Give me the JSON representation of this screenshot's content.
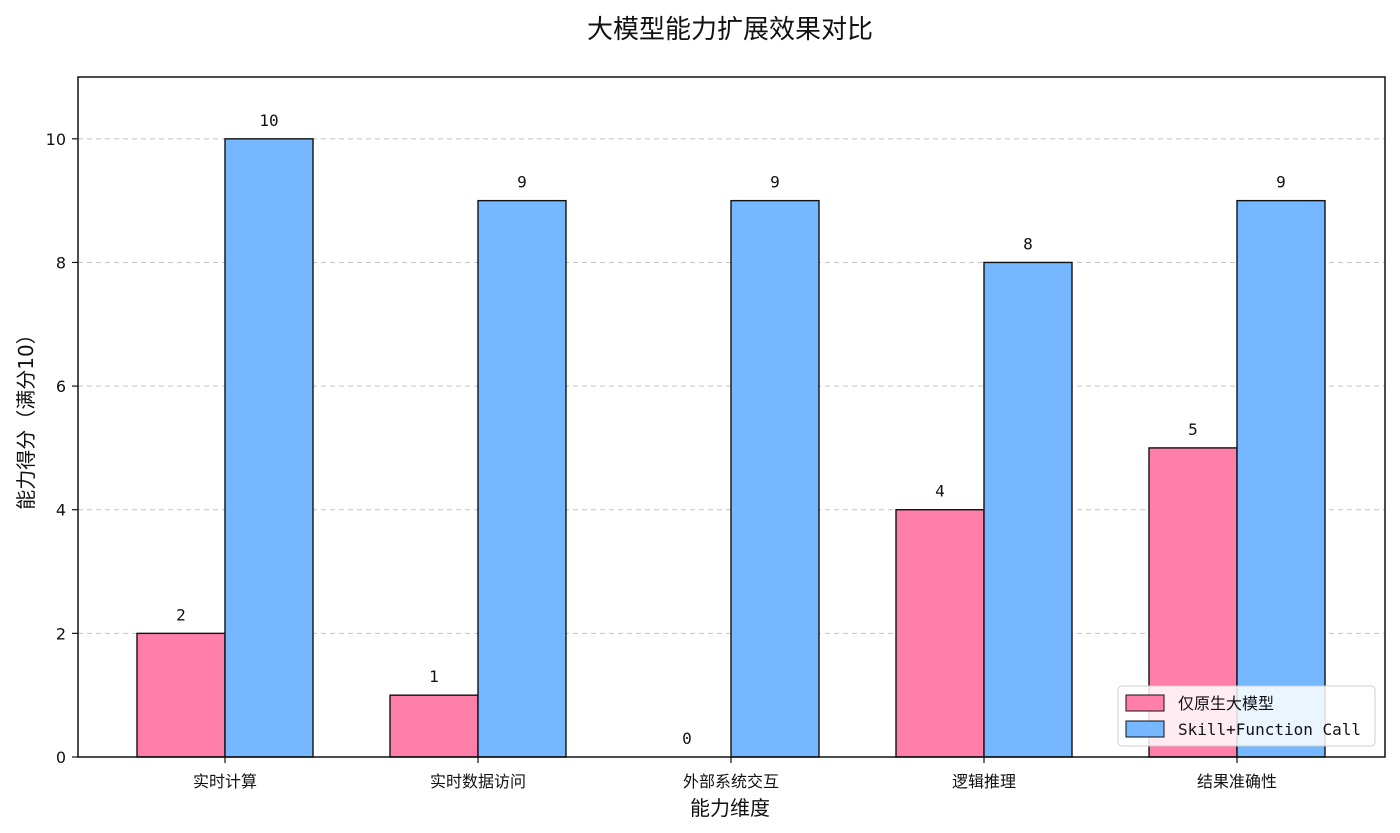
{
  "chart_data": {
    "type": "bar",
    "title": "大模型能力扩展效果对比",
    "xlabel": "能力维度",
    "ylabel": "能力得分（满分10）",
    "categories": [
      "实时计算",
      "实时数据访问",
      "外部系统交互",
      "逻辑推理",
      "结果准确性"
    ],
    "series": [
      {
        "name": "仅原生大模型",
        "values": [
          2,
          1,
          0,
          4,
          5
        ],
        "color": "#ff7eaa"
      },
      {
        "name": "Skill+Function Call",
        "values": [
          10,
          9,
          9,
          8,
          9
        ],
        "color": "#75b8ff"
      }
    ],
    "ylim": [
      0,
      11
    ],
    "yticks": [
      0,
      2,
      4,
      6,
      8,
      10
    ],
    "grid": "y-dashed",
    "legend_position": "bottom-right"
  }
}
